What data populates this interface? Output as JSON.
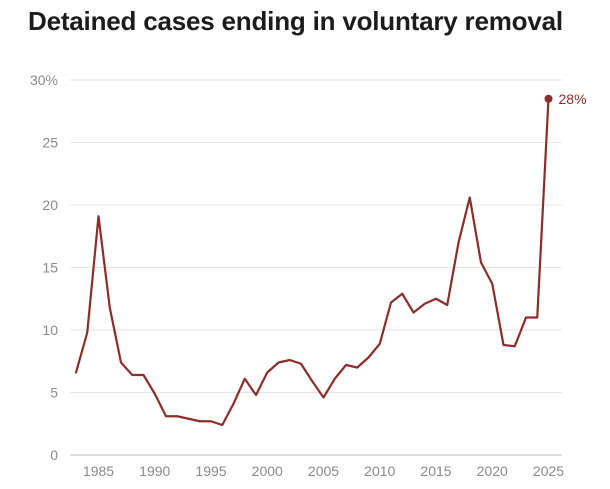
{
  "chart_data": {
    "type": "line",
    "title": "Detained cases ending in voluntary removal",
    "xlabel": "",
    "ylabel": "",
    "xlim": [
      1983,
      2025
    ],
    "ylim": [
      0,
      30
    ],
    "grid": true,
    "x_ticks": [
      "1985",
      "1990",
      "1995",
      "2000",
      "2005",
      "2010",
      "2015",
      "2020",
      "2025"
    ],
    "y_ticks": [
      "0",
      "5",
      "10",
      "15",
      "20",
      "25",
      "30%"
    ],
    "series": [
      {
        "color": "#8b2e2a",
        "x": [
          1983,
          1984,
          1985,
          1986,
          1987,
          1988,
          1989,
          1990,
          1991,
          1992,
          1993,
          1994,
          1995,
          1996,
          1997,
          1998,
          1999,
          2000,
          2001,
          2002,
          2003,
          2004,
          2005,
          2006,
          2007,
          2008,
          2009,
          2010,
          2011,
          2012,
          2013,
          2014,
          2015,
          2016,
          2017,
          2018,
          2019,
          2020,
          2021,
          2022,
          2023,
          2024,
          2025
        ],
        "values": [
          6.6,
          9.8,
          19.1,
          11.8,
          7.4,
          6.4,
          6.4,
          4.9,
          3.1,
          3.1,
          2.9,
          2.7,
          2.7,
          2.4,
          4.1,
          6.1,
          4.8,
          6.6,
          7.4,
          7.6,
          7.3,
          5.9,
          4.6,
          6.1,
          7.2,
          7.0,
          7.8,
          8.9,
          12.2,
          12.9,
          11.4,
          12.1,
          12.5,
          12.0,
          17.0,
          20.6,
          15.4,
          13.7,
          8.8,
          8.7,
          11.0,
          11.0,
          28.5
        ]
      }
    ],
    "end_label": "28%"
  }
}
